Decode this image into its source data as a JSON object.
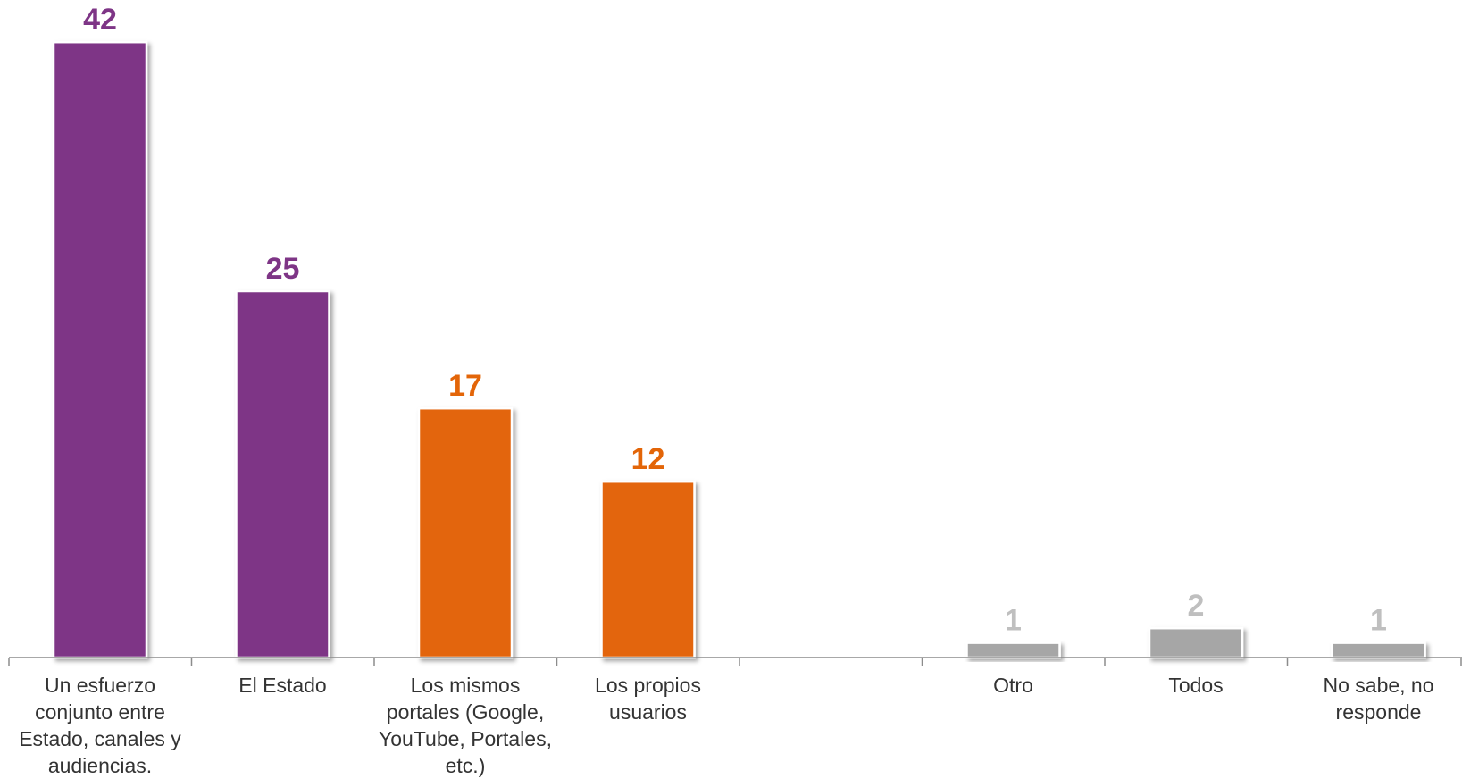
{
  "chart_data": {
    "type": "bar",
    "title": "",
    "xlabel": "",
    "ylabel": "",
    "ylim": [
      0,
      42
    ],
    "grid": false,
    "legend": "none",
    "categories": [
      "Un esfuerzo conjunto entre Estado, canales y audiencias.",
      "El Estado",
      "Los mismos portales (Google, YouTube, Portales, etc.)",
      "Los propios usuarios",
      "",
      "Otro",
      "Todos",
      "No sabe, no responde"
    ],
    "category_lines": [
      [
        "Un esfuerzo",
        "conjunto entre",
        "Estado, canales y",
        "audiencias."
      ],
      [
        "El Estado"
      ],
      [
        "Los mismos",
        "portales (Google,",
        "YouTube, Portales,",
        "etc.)"
      ],
      [
        "Los propios",
        "usuarios"
      ],
      [],
      [
        "Otro"
      ],
      [
        "Todos"
      ],
      [
        "No sabe, no",
        "responde"
      ]
    ],
    "values": [
      42,
      25,
      17,
      12,
      null,
      1,
      2,
      1
    ],
    "value_labels": [
      "42",
      "25",
      "17",
      "12",
      "",
      "1",
      "2",
      "1"
    ],
    "colors": [
      "#7E3586",
      "#7E3586",
      "#E36508",
      "#E36508",
      "",
      "#A6A6A6",
      "#A6A6A6",
      "#A6A6A6"
    ],
    "label_colors": [
      "#7E3586",
      "#7E3586",
      "#E36508",
      "#E36508",
      "",
      "#BFBFBF",
      "#BFBFBF",
      "#BFBFBF"
    ]
  }
}
